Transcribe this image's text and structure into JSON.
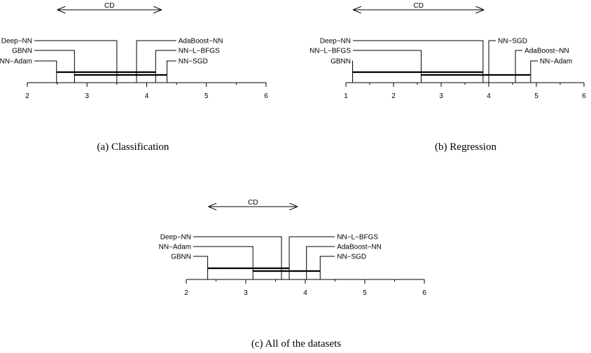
{
  "diagrams": [
    {
      "id": "classification",
      "caption": "(a) Classification",
      "cd_label": "CD",
      "cd_range": [
        2.5,
        4.25
      ],
      "axis_ticks": [
        "2",
        "3",
        "4",
        "5",
        "6"
      ],
      "axis_range": [
        2,
        6
      ],
      "methods": [
        {
          "name": "Deep−NN",
          "rank": 3.5,
          "side": "left"
        },
        {
          "name": "GBNN",
          "rank": 2.79,
          "side": "left"
        },
        {
          "name": "NN−Adam",
          "rank": 2.49,
          "side": "left"
        },
        {
          "name": "AdaBoost−NN",
          "rank": 3.83,
          "side": "right"
        },
        {
          "name": "NN−L−BFGS",
          "rank": 4.15,
          "side": "right"
        },
        {
          "name": "NN−SGD",
          "rank": 4.34,
          "side": "right"
        }
      ],
      "cliques": [
        [
          2.49,
          4.15
        ],
        [
          2.79,
          4.34
        ]
      ]
    },
    {
      "id": "regression",
      "caption": "(b) Regression",
      "cd_label": "CD",
      "cd_range": [
        1.15,
        3.9
      ],
      "axis_ticks": [
        "1",
        "2",
        "3",
        "4",
        "5",
        "6"
      ],
      "axis_range": [
        1,
        6
      ],
      "methods": [
        {
          "name": "Deep−NN",
          "rank": 3.88,
          "side": "left"
        },
        {
          "name": "NN−L−BFGS",
          "rank": 2.58,
          "side": "left"
        },
        {
          "name": "GBNN",
          "rank": 1.14,
          "side": "left"
        },
        {
          "name": "NN−SGD",
          "rank": 4.0,
          "side": "right"
        },
        {
          "name": "AdaBoost−NN",
          "rank": 4.56,
          "side": "right"
        },
        {
          "name": "NN−Adam",
          "rank": 4.88,
          "side": "right"
        }
      ],
      "cliques": [
        [
          1.14,
          3.88
        ],
        [
          2.58,
          4.88
        ]
      ]
    },
    {
      "id": "all",
      "caption": "(c) All of the datasets",
      "cd_label": "CD",
      "cd_range": [
        2.37,
        3.87
      ],
      "axis_ticks": [
        "2",
        "3",
        "4",
        "5",
        "6"
      ],
      "axis_range": [
        2,
        6
      ],
      "methods": [
        {
          "name": "Deep−NN",
          "rank": 3.6,
          "side": "left"
        },
        {
          "name": "NN−Adam",
          "rank": 3.12,
          "side": "left"
        },
        {
          "name": "GBNN",
          "rank": 2.36,
          "side": "left"
        },
        {
          "name": "NN−L−BFGS",
          "rank": 3.73,
          "side": "right"
        },
        {
          "name": "AdaBoost−NN",
          "rank": 4.02,
          "side": "right"
        },
        {
          "name": "NN−SGD",
          "rank": 4.25,
          "side": "right"
        }
      ],
      "cliques": [
        [
          2.36,
          3.73
        ],
        [
          3.12,
          4.25
        ]
      ]
    }
  ]
}
